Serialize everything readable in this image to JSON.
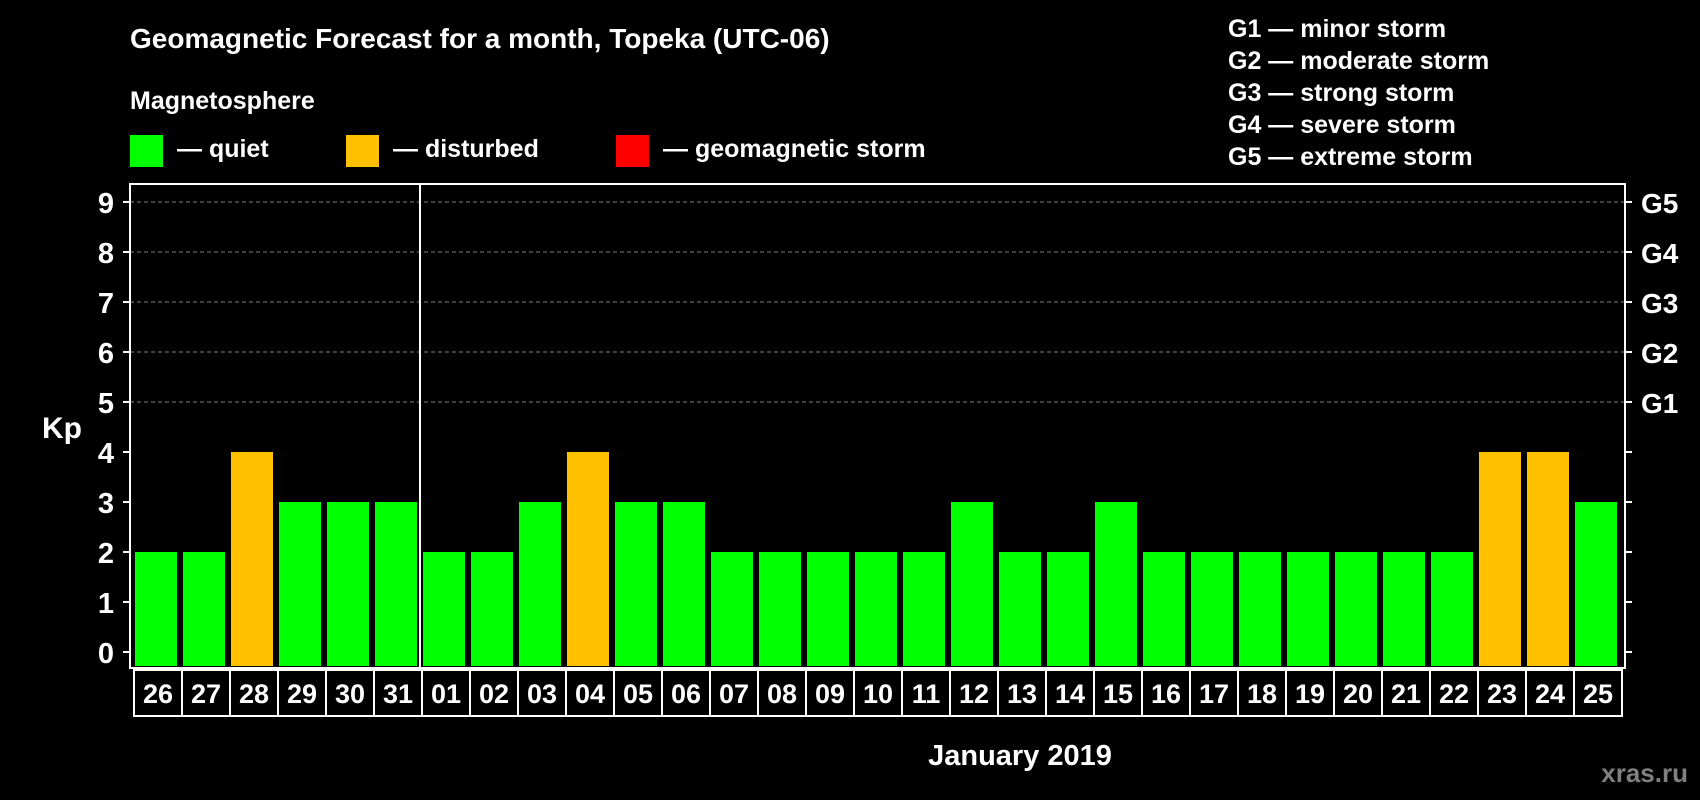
{
  "colors": {
    "background": "#000000",
    "quiet": "#00ff00",
    "disturbed": "#ffc000",
    "storm": "#ff0000",
    "axis": "#ffffff",
    "grid": "#808080",
    "watermark": "#808080"
  },
  "legend": {
    "heading": "Magnetosphere",
    "items": [
      {
        "label": "— quiet",
        "color": "#00ff00"
      },
      {
        "label": "— disturbed",
        "color": "#ffc000"
      },
      {
        "label": "— geomagnetic storm",
        "color": "#ff0000"
      }
    ]
  },
  "storm_scale": [
    "G1 — minor storm",
    "G2 — moderate storm",
    "G3 — strong storm",
    "G4 — severe storm",
    "G5 — extreme storm"
  ],
  "watermark": "xras.ru",
  "chart_data": {
    "type": "bar",
    "title": "Geomagnetic Forecast for a month, Topeka (UTC-06)",
    "xlabel": "January 2019",
    "ylabel": "Kp",
    "ylim": [
      0,
      9
    ],
    "yticks": [
      0,
      1,
      2,
      3,
      4,
      5,
      6,
      7,
      8,
      9
    ],
    "right_axis_labels": [
      {
        "kp": 5,
        "label": "G1"
      },
      {
        "kp": 6,
        "label": "G2"
      },
      {
        "kp": 7,
        "label": "G3"
      },
      {
        "kp": 8,
        "label": "G4"
      },
      {
        "kp": 9,
        "label": "G5"
      }
    ],
    "grid_kp": [
      5,
      6,
      7,
      8,
      9
    ],
    "month_divider_after": "31",
    "categories": [
      "26",
      "27",
      "28",
      "29",
      "30",
      "31",
      "01",
      "02",
      "03",
      "04",
      "05",
      "06",
      "07",
      "08",
      "09",
      "10",
      "11",
      "12",
      "13",
      "14",
      "15",
      "16",
      "17",
      "18",
      "19",
      "20",
      "21",
      "22",
      "23",
      "24",
      "25"
    ],
    "values": [
      2,
      2,
      4,
      3,
      3,
      3,
      2,
      2,
      3,
      4,
      3,
      3,
      2,
      2,
      2,
      2,
      2,
      3,
      2,
      2,
      3,
      2,
      2,
      2,
      2,
      2,
      2,
      2,
      4,
      4,
      3
    ],
    "levels": [
      "quiet",
      "quiet",
      "disturbed",
      "quiet",
      "quiet",
      "quiet",
      "quiet",
      "quiet",
      "quiet",
      "disturbed",
      "quiet",
      "quiet",
      "quiet",
      "quiet",
      "quiet",
      "quiet",
      "quiet",
      "quiet",
      "quiet",
      "quiet",
      "quiet",
      "quiet",
      "quiet",
      "quiet",
      "quiet",
      "quiet",
      "quiet",
      "quiet",
      "disturbed",
      "disturbed",
      "quiet"
    ]
  }
}
